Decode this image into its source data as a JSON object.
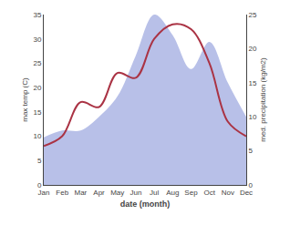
{
  "chart_data": {
    "type": "line",
    "categories": [
      "Jan",
      "Feb",
      "Mar",
      "Apr",
      "May",
      "Jun",
      "Jul",
      "Aug",
      "Sep",
      "Oct",
      "Nov",
      "Dec"
    ],
    "series": [
      {
        "type": "area",
        "axis": "y2",
        "color": "#b8c0e8",
        "values": [
          7,
          8,
          8,
          10,
          13,
          19,
          25,
          22,
          17,
          21,
          15,
          10
        ]
      },
      {
        "type": "line",
        "color": "#aa3344",
        "values": [
          8,
          10,
          17,
          16,
          23,
          22,
          30,
          33,
          32,
          25,
          13,
          10
        ]
      }
    ],
    "xlabel": "date (month)",
    "ylabel": "max temp (C)",
    "y2label": "med. precipitation (kg/m2)",
    "ylim": [
      0,
      35
    ],
    "yticks": [
      0,
      5,
      10,
      15,
      20,
      25,
      30,
      35
    ],
    "y2lim": [
      0,
      25
    ],
    "y2ticks": [
      0,
      5,
      10,
      15,
      20,
      25
    ],
    "grid": false
  }
}
